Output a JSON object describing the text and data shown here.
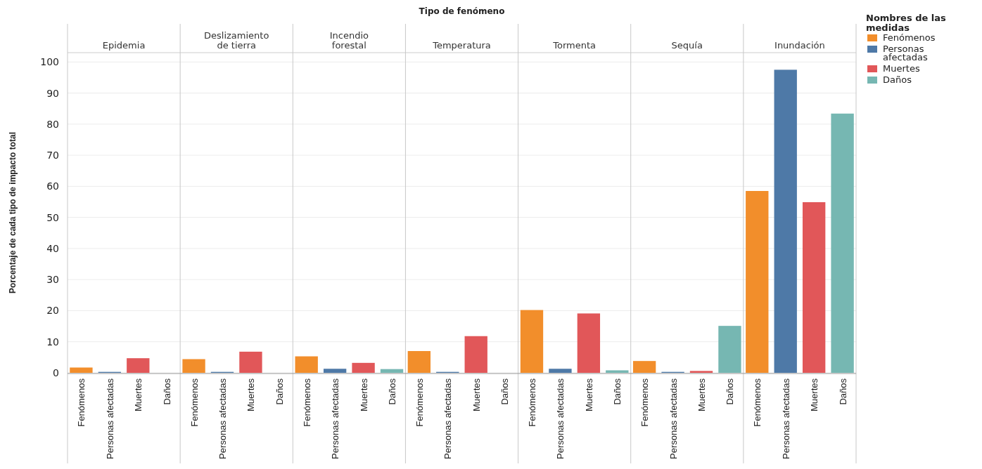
{
  "chart_data": {
    "type": "bar",
    "xlabel": "Tipo de fenómeno",
    "ylabel": "Porcentaje de cada tipo de impacto total",
    "legend_title": "Nombres de las medidas",
    "categories": [
      "Epidemia",
      "Deslizamiento de tierra",
      "Incendio forestal",
      "Temperatura",
      "Tormenta",
      "Sequía",
      "Inundación"
    ],
    "series": [
      {
        "name": "Fenómenos",
        "color": "#f28e2b",
        "values": [
          1.7,
          4.4,
          5.3,
          7.0,
          20.2,
          3.8,
          58.5
        ]
      },
      {
        "name": "Personas afectadas",
        "color": "#4e79a7",
        "values": [
          0.3,
          0.3,
          1.3,
          0.3,
          1.3,
          0.3,
          97.5
        ]
      },
      {
        "name": "Muertes",
        "color": "#e15759",
        "values": [
          4.7,
          6.8,
          3.2,
          11.8,
          19.1,
          0.6,
          54.9
        ]
      },
      {
        "name": "Daños",
        "color": "#76b7b2",
        "values": [
          0,
          0,
          1.2,
          0,
          0.8,
          15.1,
          83.4
        ]
      }
    ],
    "ylim": [
      0,
      103
    ],
    "yticks": [
      0,
      10,
      20,
      30,
      40,
      50,
      60,
      70,
      80,
      90,
      100
    ],
    "grid": "y",
    "legend": "top right"
  }
}
